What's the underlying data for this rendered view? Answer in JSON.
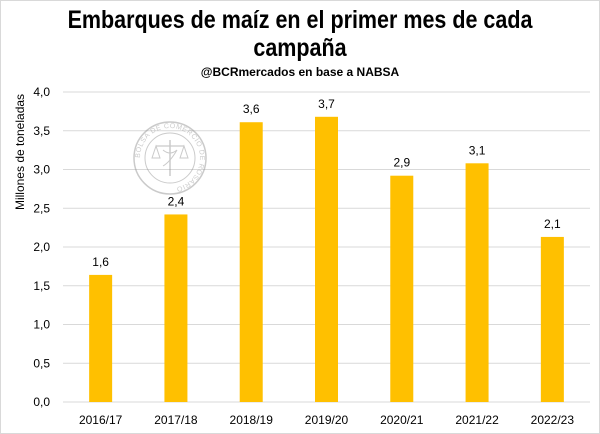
{
  "chart_data": {
    "type": "bar",
    "title_line1": "Embarques de maíz en el primer mes de cada",
    "title_line2": "campaña",
    "subtitle": "@BCRmercados  en base a NABSA",
    "xlabel": "",
    "ylabel": "Millones de toneladas",
    "categories": [
      "2016/17",
      "2017/18",
      "2018/19",
      "2019/20",
      "2020/21",
      "2021/22",
      "2022/23"
    ],
    "values": [
      1.64,
      2.42,
      3.61,
      3.68,
      2.92,
      3.08,
      2.13
    ],
    "data_labels": [
      "1,6",
      "2,4",
      "3,6",
      "3,7",
      "2,9",
      "3,1",
      "2,1"
    ],
    "ylim": [
      0,
      4.0
    ],
    "yticks": [
      "0,0",
      "0,5",
      "1,0",
      "1,5",
      "2,0",
      "2,5",
      "3,0",
      "3,5",
      "4,0"
    ],
    "grid": true,
    "bar_color": "#FFC000",
    "grid_color": "#d9d9d9",
    "watermark": "BOLSA DE COMERCIO DE ROSARIO"
  }
}
